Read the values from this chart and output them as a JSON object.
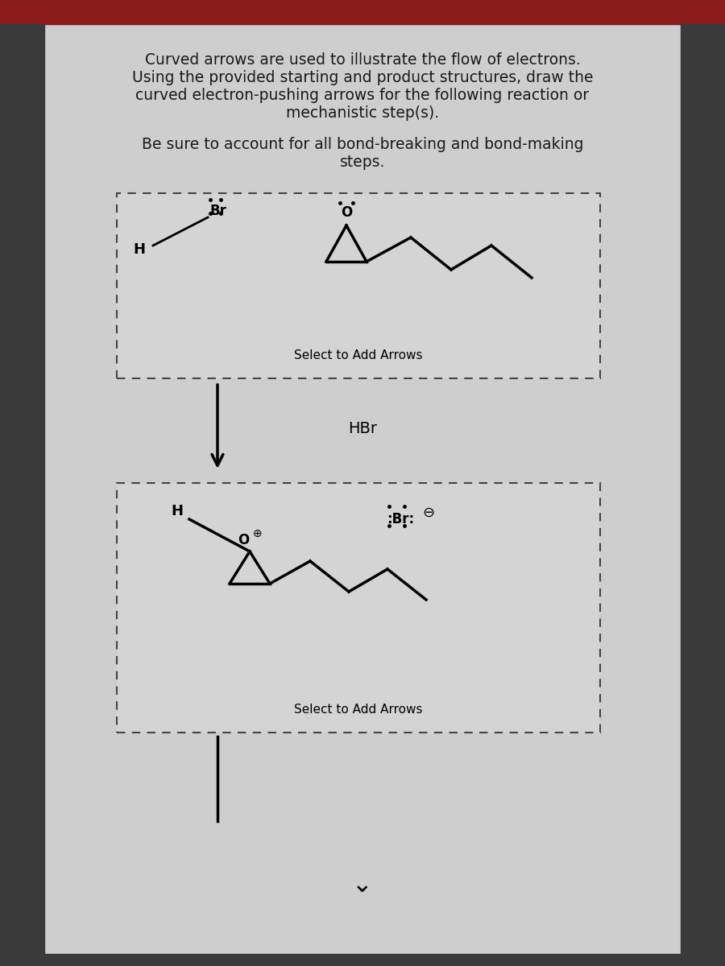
{
  "bg_color": "#c8c8c8",
  "panel_bg": "#d4d4d4",
  "box_fill": "#d8d8d8",
  "title_lines": "Curved arrows are used to illustrate the flow of electrons.\nUsing the provided starting and product structures, draw the\ncurved electron-pushing arrows for the following reaction or\nmechanistic step(s).",
  "subtitle": "Be sure to account for all bond-breaking and bond-making\nsteps.",
  "reagent": "HBr",
  "select_text": "Select to Add Arrows",
  "top_bar_color": "#8B1A1A",
  "side_bar_color": "#2a2a2a",
  "text_color": "#1a1a1a"
}
